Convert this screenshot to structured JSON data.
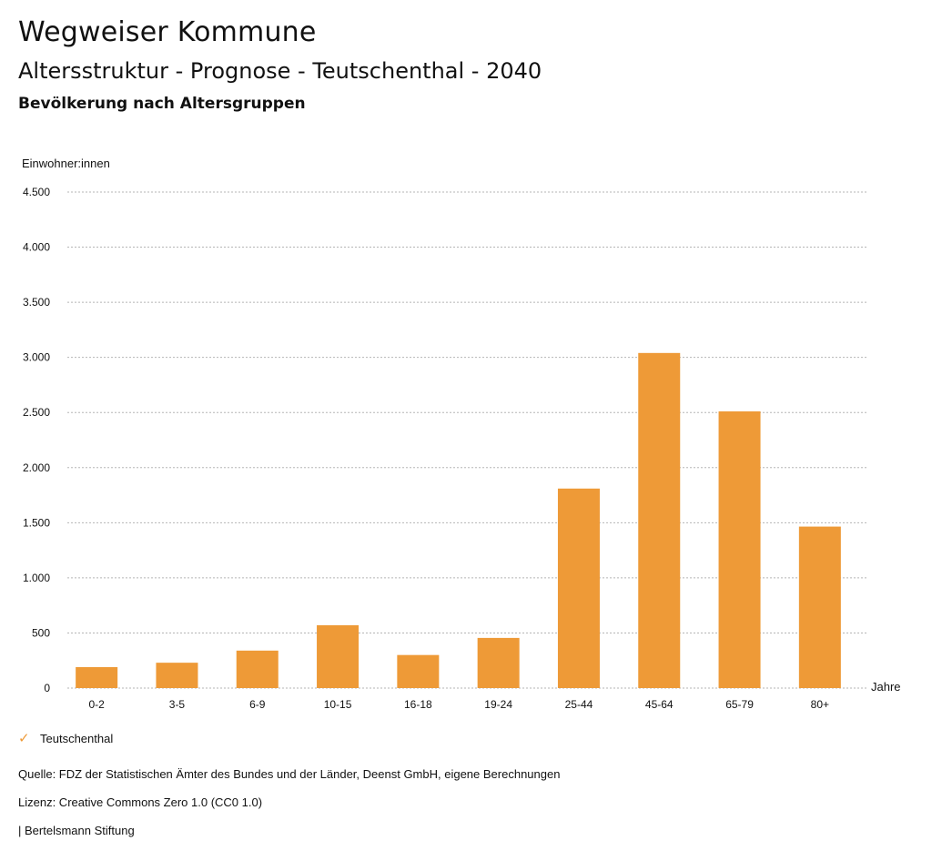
{
  "header": {
    "title": "Wegweiser Kommune",
    "subtitle": "Altersstruktur - Prognose - Teutschenthal - 2040",
    "section": "Bevölkerung nach Altersgruppen"
  },
  "legend": {
    "label": "Teutschenthal"
  },
  "footer": {
    "source": "Quelle: FDZ der Statistischen Ämter des Bundes und der Länder, Deenst GmbH, eigene Berechnungen",
    "license": "Lizenz: Creative Commons Zero 1.0 (CC0 1.0)",
    "brand_sep": "|",
    "brand": "Bertelsmann Stiftung"
  },
  "colors": {
    "bar": "#ee9a37",
    "grid": "#b5b5b5"
  },
  "chart_data": {
    "type": "bar",
    "title": "Bevölkerung nach Altersgruppen",
    "ylabel": "Einwohner:innen",
    "xlabel": "Jahre",
    "categories": [
      "0-2",
      "3-5",
      "6-9",
      "10-15",
      "16-18",
      "19-24",
      "25-44",
      "45-64",
      "65-79",
      "80+"
    ],
    "series": [
      {
        "name": "Teutschenthal",
        "values": [
          190,
          230,
          340,
          570,
          300,
          455,
          1810,
          3040,
          2510,
          1465
        ]
      }
    ],
    "ylim": [
      0,
      4500
    ],
    "yticks": [
      0,
      500,
      1000,
      1500,
      2000,
      2500,
      3000,
      3500,
      4000,
      4500
    ],
    "ytick_labels": [
      "0",
      "500",
      "1.000",
      "1.500",
      "2.000",
      "2.500",
      "3.000",
      "3.500",
      "4.000",
      "4.500"
    ],
    "grid": true,
    "legend_position": "bottom-left"
  }
}
